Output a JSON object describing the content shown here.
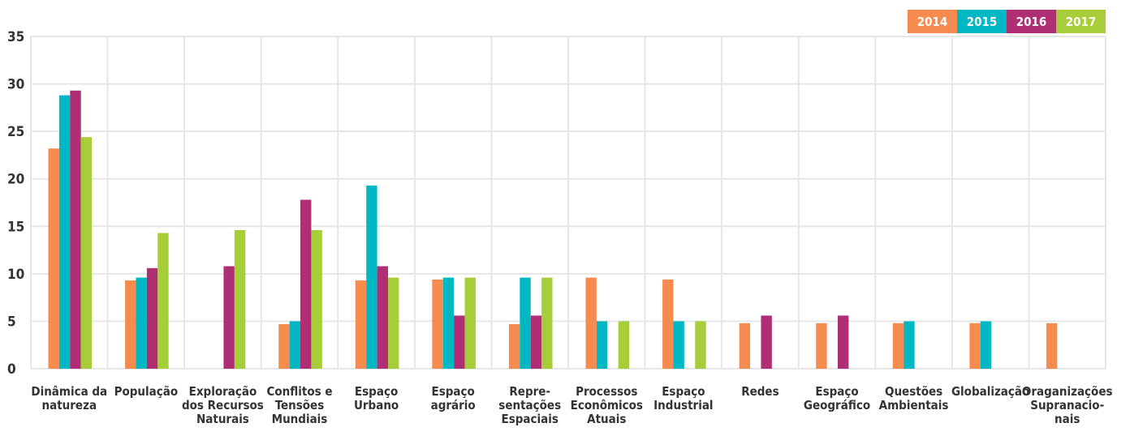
{
  "chart_data": {
    "type": "bar",
    "ylim": [
      0,
      35
    ],
    "yticks": [
      0,
      5,
      10,
      15,
      20,
      25,
      30,
      35
    ],
    "grid": true,
    "legend_position": "top-right",
    "categories": [
      [
        "Dinâmica da",
        "natureza"
      ],
      [
        "População"
      ],
      [
        "Exploração",
        "dos Recursos",
        "Naturais"
      ],
      [
        "Conflitos e",
        "Tensões",
        "Mundiais"
      ],
      [
        "Espaço",
        "Urbano"
      ],
      [
        "Espaço",
        "agrário"
      ],
      [
        "Repre-",
        "sentações",
        "Espaciais"
      ],
      [
        "Processos",
        "Econômicos",
        "Atuais"
      ],
      [
        "Espaço",
        "Industrial"
      ],
      [
        "Redes"
      ],
      [
        "Espaço",
        "Geográfico"
      ],
      [
        "Questões",
        "Ambientais"
      ],
      [
        "Globalização"
      ],
      [
        "Oraganizações",
        "Supranacio-",
        "nais"
      ]
    ],
    "series": [
      {
        "name": "2014",
        "color": "#F68B4F",
        "values": [
          23.2,
          9.3,
          0,
          4.7,
          9.3,
          9.4,
          4.7,
          9.6,
          9.4,
          4.8,
          4.8,
          4.8,
          4.8,
          4.8
        ]
      },
      {
        "name": "2015",
        "color": "#00B8C4",
        "values": [
          28.8,
          9.6,
          0,
          5.0,
          19.3,
          9.6,
          9.6,
          5.0,
          5.0,
          0,
          0,
          5.0,
          5.0,
          0
        ]
      },
      {
        "name": "2016",
        "color": "#B02E73",
        "values": [
          29.3,
          10.6,
          10.8,
          17.8,
          10.8,
          5.6,
          5.6,
          0,
          0,
          5.6,
          5.6,
          0,
          0,
          0
        ]
      },
      {
        "name": "2017",
        "color": "#A6CE39",
        "values": [
          24.4,
          14.3,
          14.6,
          14.6,
          9.6,
          9.6,
          9.6,
          5.0,
          5.0,
          0,
          0,
          0,
          0,
          0
        ]
      }
    ]
  }
}
